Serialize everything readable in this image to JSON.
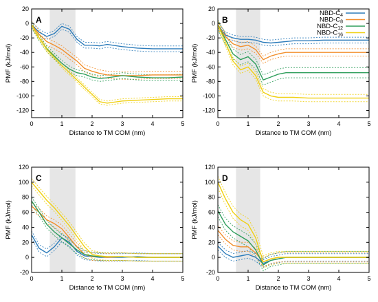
{
  "chart_data": [
    {
      "panel": "A",
      "type": "line",
      "xlabel": "Distance to TM COM (nm)",
      "ylabel": "PMF (kJ/mol)",
      "xlim": [
        0,
        5
      ],
      "ylim": [
        -130,
        20
      ],
      "x_ticks": [
        "0",
        "1",
        "2",
        "3",
        "4",
        "5"
      ],
      "y_ticks": [
        "20",
        "0",
        "-20",
        "-40",
        "-60",
        "-80",
        "-100",
        "-120"
      ],
      "shaded_region": [
        0.6,
        1.45
      ],
      "legend": false,
      "x": [
        0,
        0.25,
        0.5,
        0.75,
        1.0,
        1.25,
        1.5,
        1.75,
        2.0,
        2.25,
        2.5,
        3.0,
        3.5,
        4.0,
        4.5,
        5.0
      ],
      "series": [
        {
          "name": "NBD-C4",
          "color": "#2b7bba",
          "values": [
            -2,
            -12,
            -18,
            -14,
            -4,
            -8,
            -22,
            -30,
            -30,
            -31,
            -29,
            -32,
            -34,
            -35,
            -35,
            -35
          ],
          "band": 4
        },
        {
          "name": "NBD-C8",
          "color": "#f28e2b",
          "values": [
            -2,
            -15,
            -25,
            -30,
            -36,
            -44,
            -52,
            -62,
            -66,
            -69,
            -71,
            -72,
            -72,
            -71,
            -71,
            -71
          ],
          "band": 5
        },
        {
          "name": "NBD-C12",
          "color": "#2e9e5b",
          "values": [
            -2,
            -20,
            -35,
            -45,
            -55,
            -63,
            -68,
            -70,
            -74,
            -76,
            -75,
            -72,
            -74,
            -75,
            -75,
            -74
          ],
          "band": 4
        },
        {
          "name": "NBD-C16",
          "color": "#f0d012",
          "values": [
            -2,
            -20,
            -36,
            -47,
            -58,
            -68,
            -78,
            -88,
            -98,
            -108,
            -110,
            -107,
            -106,
            -105,
            -104,
            -104
          ],
          "band": 3
        }
      ]
    },
    {
      "panel": "B",
      "type": "line",
      "xlabel": "Distance to TM COM (nm)",
      "ylabel": "PMF (kJ/mol)",
      "xlim": [
        0,
        5
      ],
      "ylim": [
        -130,
        20
      ],
      "x_ticks": [
        "0",
        "1",
        "2",
        "3",
        "4",
        "5"
      ],
      "y_ticks": [
        "20",
        "0",
        "-20",
        "-40",
        "-60",
        "-80",
        "-100",
        "-120"
      ],
      "shaded_region": [
        0.6,
        1.4
      ],
      "legend": true,
      "legend_position": "top-right",
      "x": [
        0,
        0.25,
        0.5,
        0.75,
        1.0,
        1.25,
        1.5,
        1.75,
        2.0,
        2.25,
        2.5,
        3.0,
        3.5,
        4.0,
        4.5,
        5.0
      ],
      "series": [
        {
          "name": "NBD-C4",
          "color": "#2b7bba",
          "values": [
            -2,
            -16,
            -20,
            -22,
            -22,
            -23,
            -26,
            -27,
            -26,
            -25,
            -24,
            -24,
            -23,
            -23,
            -23,
            -23
          ],
          "band": 4
        },
        {
          "name": "NBD-C8",
          "color": "#f28e2b",
          "values": [
            -2,
            -18,
            -28,
            -32,
            -30,
            -36,
            -50,
            -45,
            -42,
            -40,
            -40,
            -40,
            -40,
            -40,
            -40,
            -40
          ],
          "band": 5
        },
        {
          "name": "NBD-C12",
          "color": "#2e9e5b",
          "values": [
            -2,
            -22,
            -42,
            -50,
            -46,
            -56,
            -78,
            -74,
            -70,
            -68,
            -68,
            -68,
            -68,
            -68,
            -68,
            -68
          ],
          "band": 7
        },
        {
          "name": "NBD-C16",
          "color": "#f0d012",
          "values": [
            -2,
            -26,
            -52,
            -64,
            -60,
            -72,
            -95,
            -100,
            -102,
            -102,
            -102,
            -103,
            -103,
            -103,
            -103,
            -103
          ],
          "band": 5
        }
      ]
    },
    {
      "panel": "C",
      "type": "line",
      "xlabel": "Distance to TM COM (nm)",
      "ylabel": "PMF (kJ/mol)",
      "xlim": [
        0,
        5
      ],
      "ylim": [
        -20,
        120
      ],
      "x_ticks": [
        "0",
        "1",
        "2",
        "3",
        "4",
        "5"
      ],
      "y_ticks": [
        "120",
        "100",
        "80",
        "60",
        "40",
        "20",
        "0",
        "-20"
      ],
      "shaded_region": [
        0.6,
        1.45
      ],
      "legend": false,
      "x": [
        0,
        0.25,
        0.5,
        0.75,
        1.0,
        1.25,
        1.5,
        1.75,
        2.0,
        2.25,
        2.5,
        3.0,
        3.5,
        4.0,
        4.5,
        5.0
      ],
      "series": [
        {
          "name": "NBD-C4",
          "color": "#2b7bba",
          "values": [
            30,
            12,
            6,
            14,
            26,
            20,
            8,
            2,
            1,
            0,
            0,
            0,
            1,
            0,
            0,
            0
          ],
          "band": 5
        },
        {
          "name": "NBD-C8",
          "color": "#f28e2b",
          "values": [
            68,
            60,
            50,
            45,
            38,
            26,
            14,
            4,
            1,
            1,
            0,
            1,
            0,
            0,
            0,
            0
          ],
          "band": 5
        },
        {
          "name": "NBD-C12",
          "color": "#2e9e5b",
          "values": [
            75,
            60,
            44,
            34,
            26,
            18,
            10,
            4,
            2,
            1,
            1,
            1,
            0,
            0,
            0,
            0
          ],
          "band": 5
        },
        {
          "name": "NBD-C16",
          "color": "#f0d012",
          "values": [
            100,
            88,
            76,
            66,
            54,
            42,
            28,
            14,
            4,
            2,
            1,
            1,
            0,
            0,
            0,
            0
          ],
          "band": 5
        }
      ]
    },
    {
      "panel": "D",
      "type": "line",
      "xlabel": "Distance to TM COM (nm)",
      "ylabel": "PMF (kJ/mol)",
      "xlim": [
        0,
        5
      ],
      "ylim": [
        -20,
        120
      ],
      "x_ticks": [
        "0",
        "1",
        "2",
        "3",
        "4",
        "5"
      ],
      "y_ticks": [
        "120",
        "100",
        "80",
        "60",
        "40",
        "20",
        "0",
        "-20"
      ],
      "shaded_region": [
        0.6,
        1.4
      ],
      "legend": false,
      "x": [
        0,
        0.25,
        0.5,
        0.75,
        1.0,
        1.25,
        1.5,
        1.75,
        2.0,
        2.25,
        2.5,
        3.0,
        3.5,
        4.0,
        4.5,
        5.0
      ],
      "series": [
        {
          "name": "NBD-C4",
          "color": "#2b7bba",
          "values": [
            15,
            5,
            0,
            2,
            4,
            0,
            -8,
            -4,
            -2,
            0,
            0,
            0,
            0,
            0,
            0,
            0
          ],
          "band": 5
        },
        {
          "name": "NBD-C8",
          "color": "#f28e2b",
          "values": [
            36,
            24,
            16,
            14,
            14,
            6,
            -6,
            -2,
            0,
            0,
            0,
            0,
            0,
            0,
            0,
            0
          ],
          "band": 6
        },
        {
          "name": "NBD-C12",
          "color": "#2e9e5b",
          "values": [
            62,
            44,
            34,
            28,
            22,
            10,
            -10,
            -4,
            -2,
            0,
            0,
            0,
            0,
            0,
            0,
            0
          ],
          "band": 8
        },
        {
          "name": "NBD-C16",
          "color": "#f0d012",
          "values": [
            100,
            78,
            60,
            50,
            44,
            26,
            -6,
            -2,
            0,
            0,
            0,
            0,
            0,
            0,
            0,
            0
          ],
          "band": 8
        }
      ]
    }
  ],
  "legend": {
    "entries": [
      {
        "base": "NBD-C",
        "sub": "4",
        "color": "#2b7bba"
      },
      {
        "base": "NBD-C",
        "sub": "8",
        "color": "#f28e2b"
      },
      {
        "base": "NBD-C",
        "sub": "12",
        "color": "#2e9e5b"
      },
      {
        "base": "NBD-C",
        "sub": "16",
        "color": "#f0d012"
      }
    ]
  },
  "colors": {
    "shade": "#e6e6e6",
    "axis": "#000000"
  }
}
